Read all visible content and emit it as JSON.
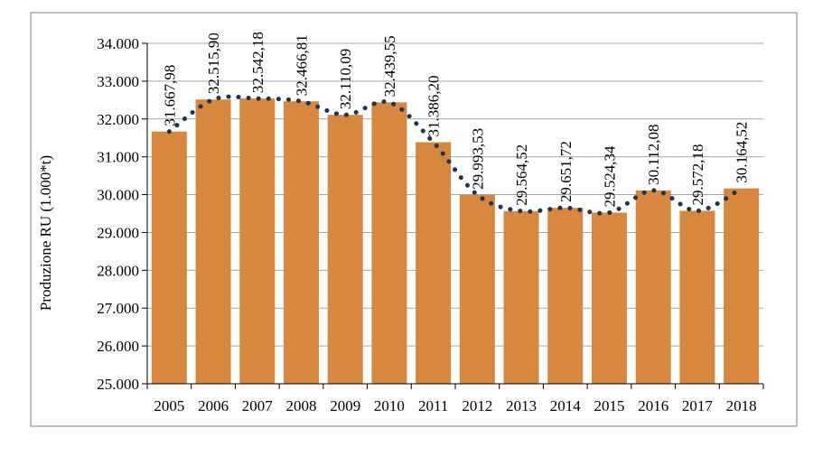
{
  "chart_data": {
    "type": "bar",
    "title": "",
    "xlabel": "",
    "ylabel": "Produzione RU  (1.000*t)",
    "categories": [
      "2005",
      "2006",
      "2007",
      "2008",
      "2009",
      "2010",
      "2011",
      "2012",
      "2013",
      "2014",
      "2015",
      "2016",
      "2017",
      "2018"
    ],
    "values": [
      31667.98,
      32515.9,
      32542.18,
      32466.81,
      32110.09,
      32439.55,
      31386.2,
      29993.53,
      29564.52,
      29651.72,
      29524.34,
      30112.08,
      29572.18,
      30164.52
    ],
    "data_labels": [
      "31.667,98",
      "32.515,90",
      "32.542,18",
      "32.466,81",
      "32.110,09",
      "32.439,55",
      "31.386,20",
      "29.993,53",
      "29.564,52",
      "29.651,72",
      "29.524,34",
      "30.112,08",
      "29.572,18",
      "30.164,52"
    ],
    "ylim": [
      25000,
      34000
    ],
    "yticks": [
      25000,
      26000,
      27000,
      28000,
      29000,
      30000,
      31000,
      32000,
      33000,
      34000
    ],
    "ytick_labels": [
      "25.000",
      "26.000",
      "27.000",
      "28.000",
      "29.000",
      "30.000",
      "31.000",
      "32.000",
      "33.000",
      "34.000"
    ],
    "grid": true,
    "trendline": "dotted",
    "colors": {
      "bar": "#d8873f",
      "trend": "#1f3352",
      "grid": "#a6a6a6",
      "frame": "#7f7f7f"
    }
  }
}
